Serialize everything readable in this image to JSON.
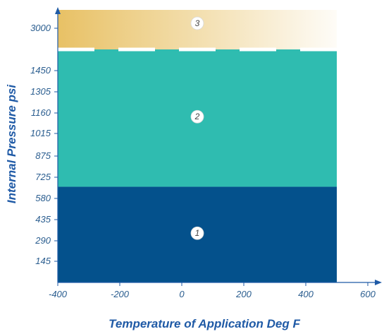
{
  "chart_data": {
    "type": "area",
    "title": "",
    "xlabel": "Temperature of Application Deg F",
    "ylabel": "Internal Pressure psi",
    "x_ticks": [
      -400,
      -200,
      0,
      200,
      400,
      600
    ],
    "x_tick_labels": [
      "-400",
      "-200",
      "0",
      "200",
      "400",
      "600"
    ],
    "y_ticks": [
      145,
      290,
      435,
      580,
      725,
      875,
      1015,
      1160,
      1305,
      1450,
      3000
    ],
    "y_tick_labels": [
      "145",
      "290",
      "435",
      "580",
      "725",
      "875",
      "1015",
      "1160",
      "1305",
      "1450",
      "3000"
    ],
    "xlim": [
      -400,
      600
    ],
    "y_scale": "broken above 1450",
    "grid": false,
    "zones": [
      {
        "label": "1",
        "x_range": [
          -400,
          500
        ],
        "y_range": [
          0,
          660
        ],
        "color": "#04518c"
      },
      {
        "label": "2",
        "x_range": [
          -400,
          500
        ],
        "y_range": [
          660,
          1600
        ],
        "color": "#2fbcb0"
      },
      {
        "label": "3",
        "x_range": [
          -400,
          500
        ],
        "y_range": [
          1600,
          3100
        ],
        "color": "#e8c165"
      }
    ],
    "boundary_style": "dashed white line between zone 2 and zone 3",
    "colors": {
      "axis": "#1f5aa6",
      "tick_text": "#2a5d8f",
      "title_text": "#1f5aa6"
    }
  }
}
